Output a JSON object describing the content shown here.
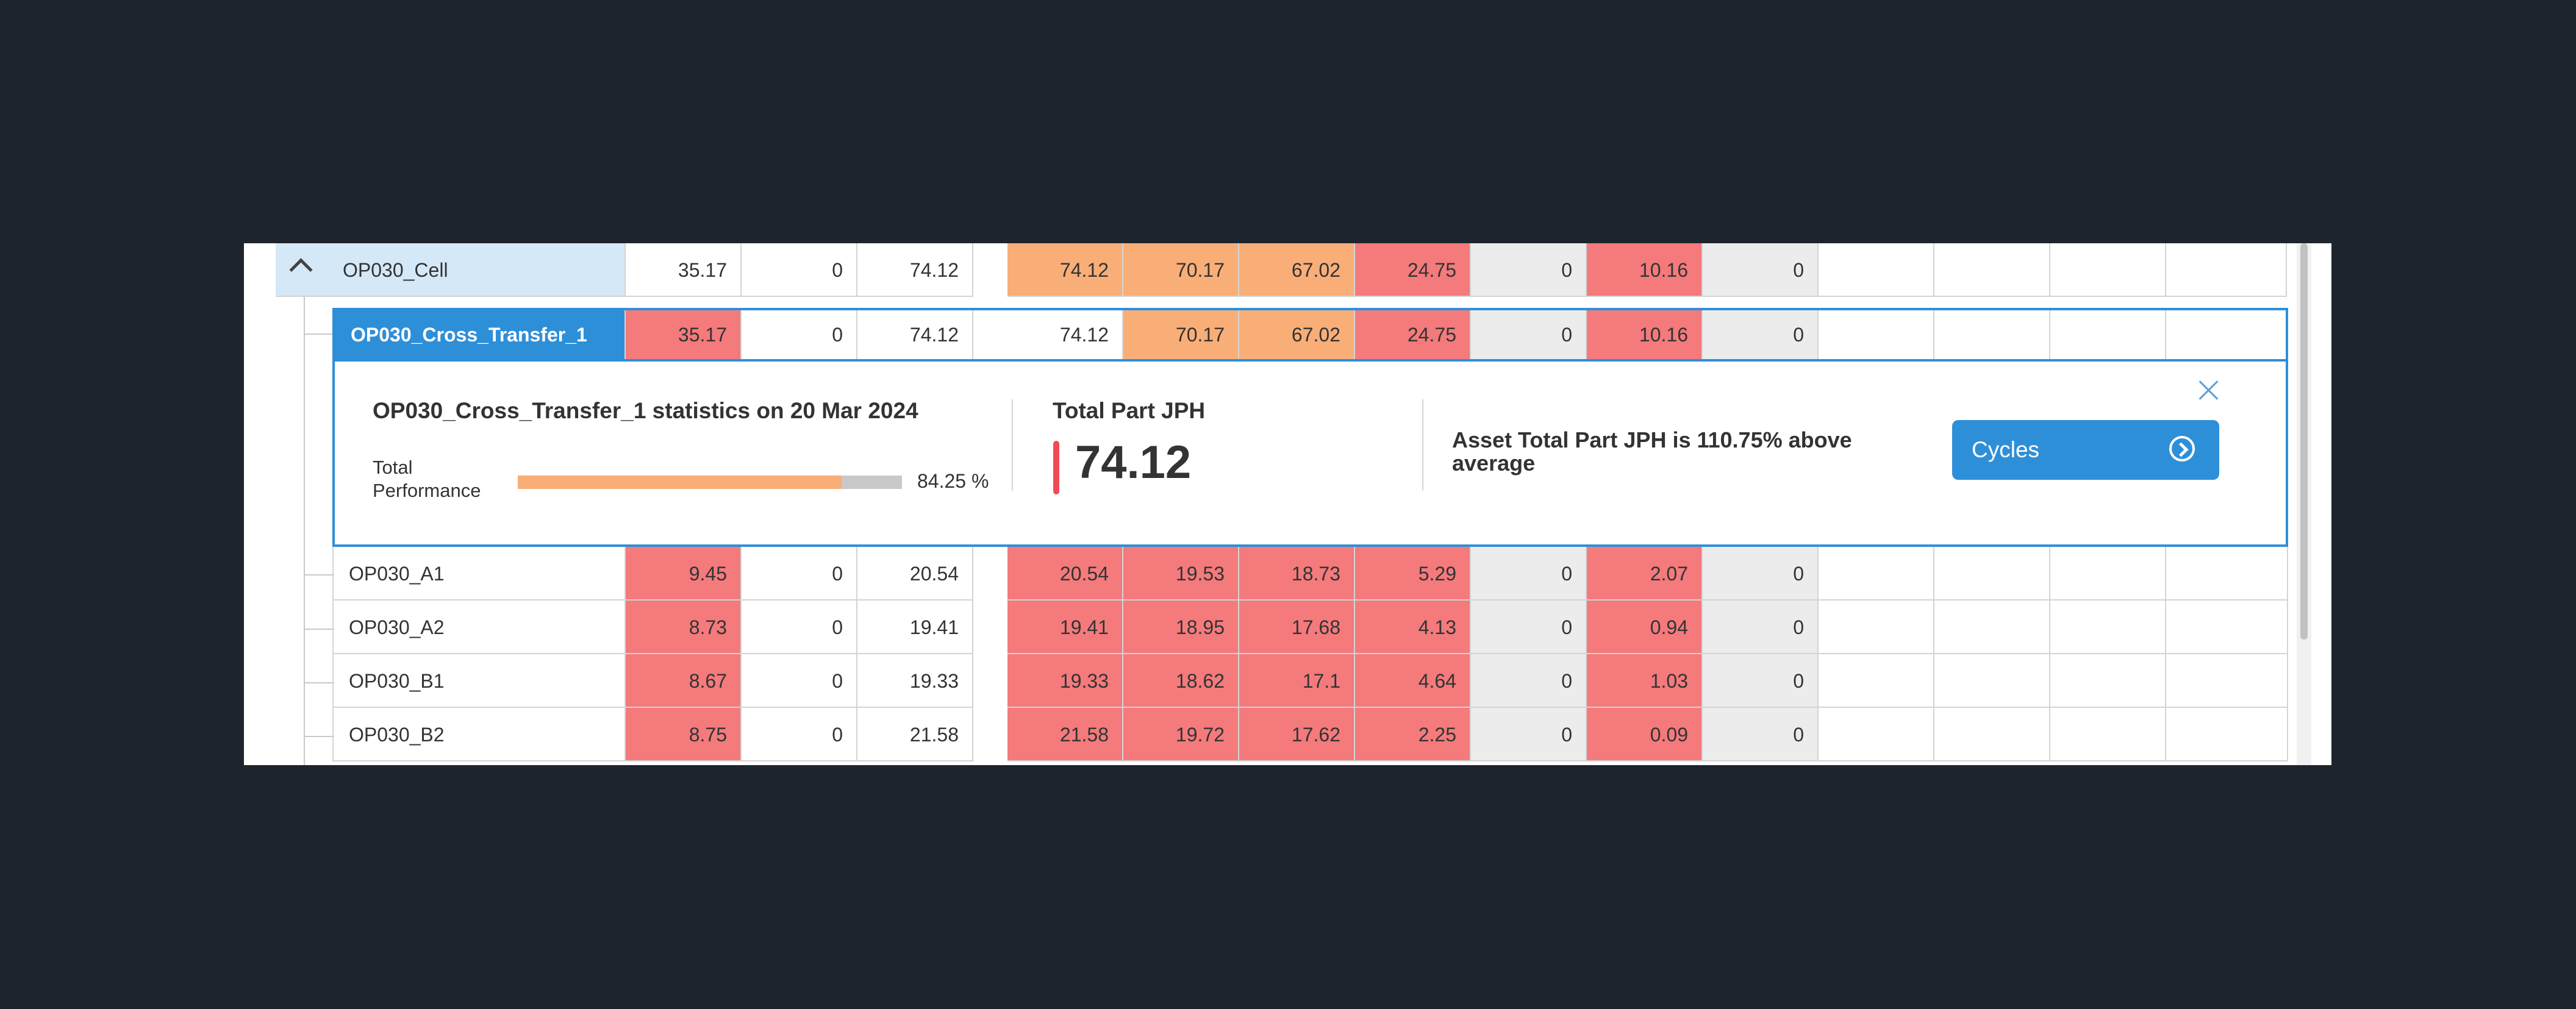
{
  "rows": [
    {
      "name": "OP030_Cell",
      "values": [
        "35.17",
        "0",
        "74.12",
        "74.12",
        "70.17",
        "67.02",
        "24.75",
        "0",
        "10.16",
        "0",
        "",
        "",
        "",
        ""
      ]
    },
    {
      "name": "OP030_Cross_Transfer_1",
      "values": [
        "35.17",
        "0",
        "74.12",
        "74.12",
        "70.17",
        "67.02",
        "24.75",
        "0",
        "10.16",
        "0",
        "",
        "",
        "",
        ""
      ]
    },
    {
      "name": "OP030_A1",
      "values": [
        "9.45",
        "0",
        "20.54",
        "20.54",
        "19.53",
        "18.73",
        "5.29",
        "0",
        "2.07",
        "0",
        "",
        "",
        "",
        ""
      ]
    },
    {
      "name": "OP030_A2",
      "values": [
        "8.73",
        "0",
        "19.41",
        "19.41",
        "18.95",
        "17.68",
        "4.13",
        "0",
        "0.94",
        "0",
        "",
        "",
        "",
        ""
      ]
    },
    {
      "name": "OP030_B1",
      "values": [
        "8.67",
        "0",
        "19.33",
        "19.33",
        "18.62",
        "17.1",
        "4.64",
        "0",
        "1.03",
        "0",
        "",
        "",
        "",
        ""
      ]
    },
    {
      "name": "OP030_B2",
      "values": [
        "8.75",
        "0",
        "21.58",
        "21.58",
        "19.72",
        "17.62",
        "2.25",
        "0",
        "0.09",
        "0",
        "",
        "",
        "",
        ""
      ]
    }
  ],
  "popup": {
    "title": "OP030_Cross_Transfer_1 statistics on 20 Mar 2024",
    "performance_label": "Total Performance",
    "performance_value": "84.25 %",
    "performance_percent": 84.25,
    "jph_label": "Total Part JPH",
    "jph_value": "74.12",
    "asset_text": "Asset Total Part JPH is 110.75% above average",
    "cycles_label": "Cycles"
  },
  "colors": {
    "red": "#f47a7c",
    "orange": "#f9ae77",
    "grey": "#ececec",
    "selected": "#2e8fd9",
    "parent": "#d5e8f7"
  },
  "icons": {
    "expand": "chevron-up-icon",
    "status": "status-dot-icon",
    "close": "close-icon",
    "cycles": "chevron-right-circle-icon"
  }
}
